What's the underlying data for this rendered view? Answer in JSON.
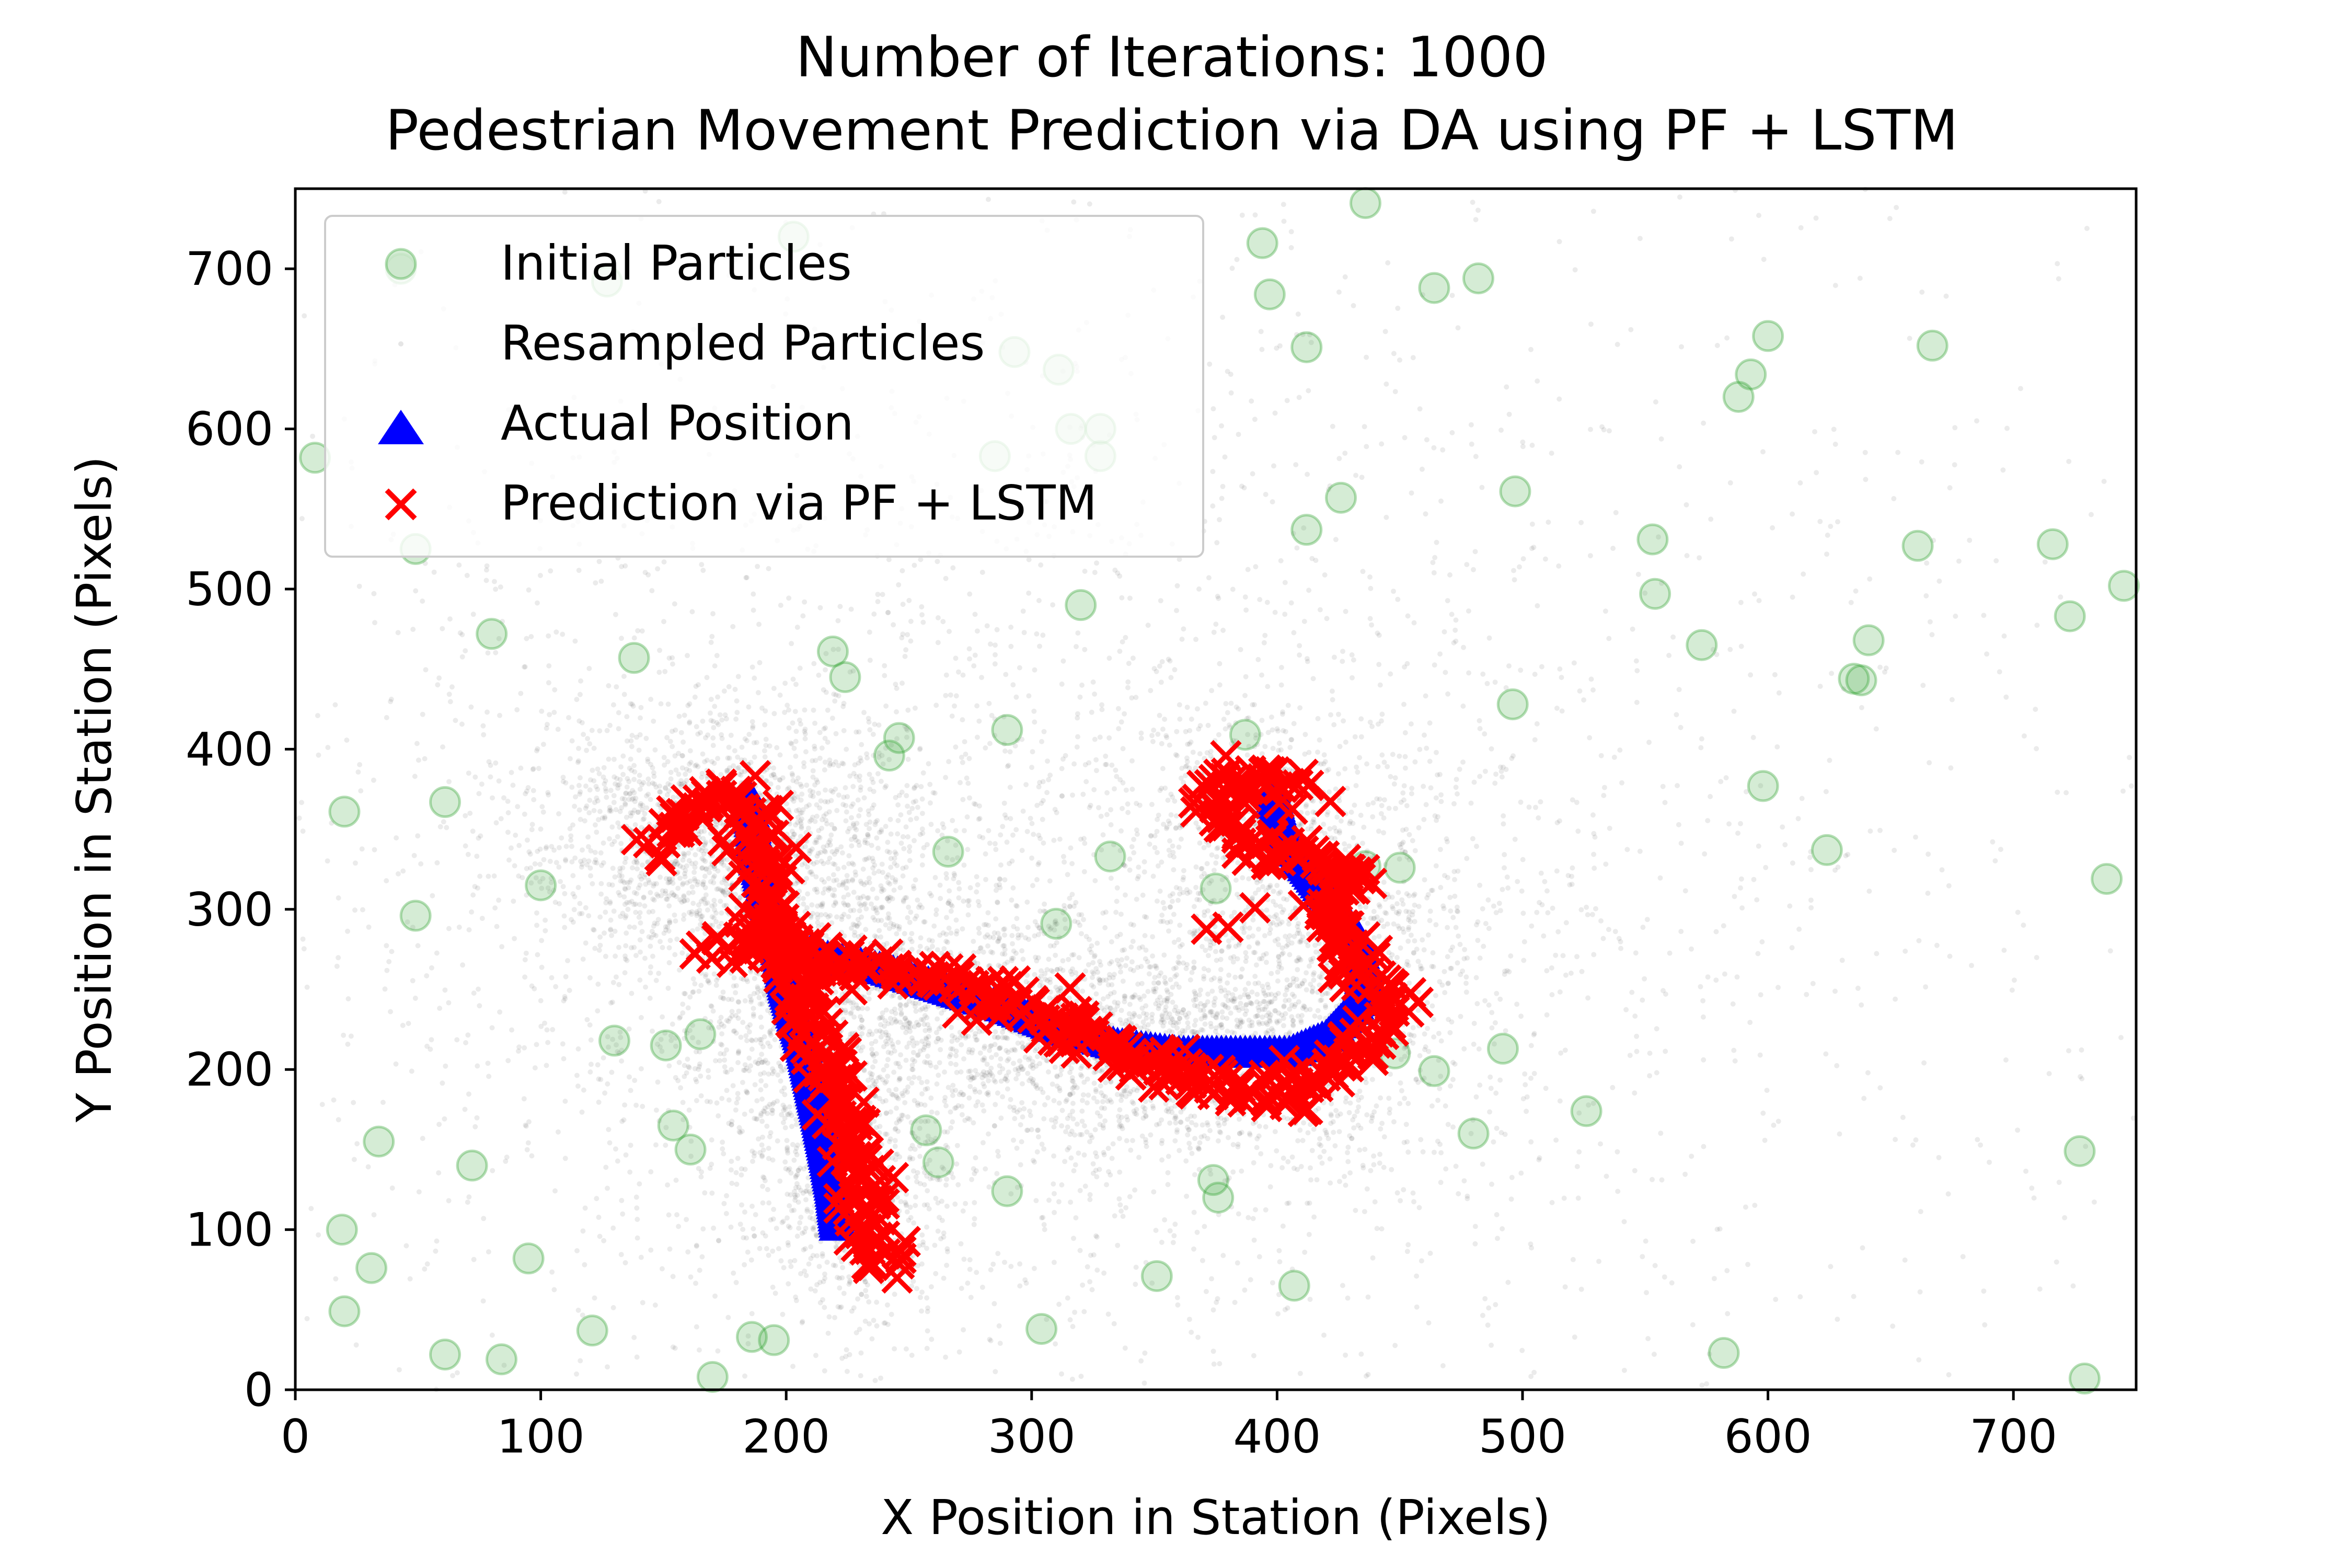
{
  "chart_data": {
    "type": "scatter",
    "title": "Number of Iterations: 1000",
    "subtitle": "Pedestrian Movement Prediction via DA using PF + LSTM",
    "xlabel": "X Position in Station (Pixels)",
    "ylabel": "Y Position in Station (Pixels)",
    "xlim": [
      0,
      750
    ],
    "ylim": [
      0,
      750
    ],
    "x_ticks": [
      "0",
      "100",
      "200",
      "300",
      "400",
      "500",
      "600",
      "700"
    ],
    "y_ticks": [
      "0",
      "100",
      "200",
      "300",
      "400",
      "500",
      "600",
      "700"
    ],
    "grid": false,
    "legend_position": "top-left",
    "colors": {
      "initial": "#2ca02c",
      "resampled": "#000000",
      "actual": "#0000ff",
      "prediction": "#ff0000"
    },
    "series": [
      {
        "name": "Initial Particles",
        "marker": "circle",
        "points": [
          [
            43,
            700
          ],
          [
            8,
            582
          ],
          [
            20,
            361
          ],
          [
            61,
            367
          ],
          [
            49,
            296
          ],
          [
            100,
            315
          ],
          [
            138,
            457
          ],
          [
            80,
            472
          ],
          [
            49,
            525
          ],
          [
            127,
            692
          ],
          [
            95,
            82
          ],
          [
            31,
            76
          ],
          [
            19,
            100
          ],
          [
            20,
            49
          ],
          [
            61,
            22
          ],
          [
            84,
            19
          ],
          [
            121,
            37
          ],
          [
            34,
            155
          ],
          [
            72,
            140
          ],
          [
            130,
            218
          ],
          [
            151,
            215
          ],
          [
            154,
            165
          ],
          [
            161,
            150
          ],
          [
            165,
            222
          ],
          [
            170,
            8
          ],
          [
            186,
            33
          ],
          [
            195,
            31
          ],
          [
            219,
            461
          ],
          [
            224,
            445
          ],
          [
            246,
            407
          ],
          [
            242,
            396
          ],
          [
            266,
            336
          ],
          [
            262,
            142
          ],
          [
            257,
            162
          ],
          [
            290,
            412
          ],
          [
            290,
            124
          ],
          [
            304,
            38
          ],
          [
            310,
            291
          ],
          [
            316,
            600
          ],
          [
            328,
            600
          ],
          [
            328,
            583
          ],
          [
            285,
            583
          ],
          [
            293,
            648
          ],
          [
            311,
            637
          ],
          [
            320,
            490
          ],
          [
            332,
            333
          ],
          [
            203,
            720
          ],
          [
            394,
            716
          ],
          [
            397,
            684
          ],
          [
            412,
            651
          ],
          [
            436,
            741
          ],
          [
            464,
            688
          ],
          [
            482,
            694
          ],
          [
            412,
            537
          ],
          [
            426,
            557
          ],
          [
            497,
            561
          ],
          [
            387,
            409
          ],
          [
            375,
            313
          ],
          [
            374,
            131
          ],
          [
            376,
            120
          ],
          [
            351,
            71
          ],
          [
            407,
            65
          ],
          [
            436,
            327
          ],
          [
            450,
            326
          ],
          [
            448,
            210
          ],
          [
            464,
            199
          ],
          [
            480,
            160
          ],
          [
            492,
            213
          ],
          [
            496,
            428
          ],
          [
            526,
            174
          ],
          [
            553,
            531
          ],
          [
            554,
            497
          ],
          [
            573,
            465
          ],
          [
            588,
            620
          ],
          [
            593,
            634
          ],
          [
            600,
            658
          ],
          [
            598,
            377
          ],
          [
            624,
            337
          ],
          [
            635,
            444
          ],
          [
            638,
            443
          ],
          [
            641,
            468
          ],
          [
            661,
            527
          ],
          [
            667,
            652
          ],
          [
            716,
            528
          ],
          [
            723,
            483
          ],
          [
            745,
            502
          ],
          [
            727,
            149
          ],
          [
            738,
            319
          ],
          [
            729,
            7
          ],
          [
            582,
            23
          ]
        ]
      },
      {
        "name": "Resampled Particles",
        "marker": "dot",
        "clusters": [
          {
            "cx": 170,
            "cy": 345,
            "sx": 38,
            "sy": 38,
            "count": 1400
          },
          {
            "cx": 210,
            "cy": 230,
            "sx": 28,
            "sy": 70,
            "count": 1000
          },
          {
            "cx": 230,
            "cy": 120,
            "sx": 22,
            "sy": 40,
            "count": 500
          },
          {
            "cx": 290,
            "cy": 235,
            "sx": 45,
            "sy": 35,
            "count": 900
          },
          {
            "cx": 360,
            "cy": 205,
            "sx": 40,
            "sy": 30,
            "count": 800
          },
          {
            "cx": 415,
            "cy": 260,
            "sx": 35,
            "sy": 60,
            "count": 900
          },
          {
            "cx": 395,
            "cy": 360,
            "sx": 25,
            "sy": 30,
            "count": 400
          },
          {
            "cx": 300,
            "cy": 300,
            "sx": 150,
            "sy": 150,
            "count": 2600
          },
          {
            "cx": 375,
            "cy": 375,
            "sx": 300,
            "sy": 300,
            "count": 1500
          }
        ]
      },
      {
        "name": "Actual Position",
        "marker": "triangle",
        "path": [
          [
            185,
            370
          ],
          [
            188,
            330
          ],
          [
            195,
            290
          ],
          [
            200,
            250
          ],
          [
            207,
            215
          ],
          [
            212,
            180
          ],
          [
            216,
            150
          ],
          [
            219,
            125
          ],
          [
            221,
            100
          ],
          [
            198,
            280
          ],
          [
            215,
            270
          ],
          [
            240,
            262
          ],
          [
            265,
            250
          ],
          [
            290,
            238
          ],
          [
            312,
            225
          ],
          [
            335,
            215
          ],
          [
            360,
            210
          ],
          [
            385,
            210
          ],
          [
            405,
            210
          ],
          [
            420,
            220
          ],
          [
            432,
            240
          ],
          [
            436,
            262
          ],
          [
            432,
            285
          ],
          [
            422,
            305
          ],
          [
            410,
            330
          ],
          [
            402,
            352
          ],
          [
            398,
            375
          ]
        ]
      },
      {
        "name": "Prediction via PF + LSTM",
        "marker": "x",
        "path": [
          [
            150,
            345
          ],
          [
            160,
            360
          ],
          [
            178,
            372
          ],
          [
            186,
            362
          ],
          [
            190,
            340
          ],
          [
            193,
            320
          ],
          [
            190,
            300
          ],
          [
            200,
            280
          ],
          [
            205,
            255
          ],
          [
            210,
            235
          ],
          [
            216,
            210
          ],
          [
            220,
            190
          ],
          [
            224,
            170
          ],
          [
            228,
            150
          ],
          [
            230,
            130
          ],
          [
            233,
            110
          ],
          [
            235,
            90
          ],
          [
            238,
            72
          ],
          [
            172,
            280
          ],
          [
            215,
            270
          ],
          [
            235,
            265
          ],
          [
            255,
            258
          ],
          [
            275,
            250
          ],
          [
            295,
            240
          ],
          [
            315,
            225
          ],
          [
            330,
            210
          ],
          [
            355,
            200
          ],
          [
            375,
            190
          ],
          [
            400,
            185
          ],
          [
            420,
            195
          ],
          [
            440,
            225
          ],
          [
            445,
            245
          ],
          [
            430,
            265
          ],
          [
            425,
            280
          ],
          [
            420,
            300
          ],
          [
            430,
            320
          ],
          [
            410,
            330
          ],
          [
            395,
            340
          ],
          [
            380,
            355
          ],
          [
            375,
            375
          ],
          [
            392,
            385
          ],
          [
            412,
            370
          ],
          [
            385,
            295
          ]
        ]
      }
    ]
  }
}
